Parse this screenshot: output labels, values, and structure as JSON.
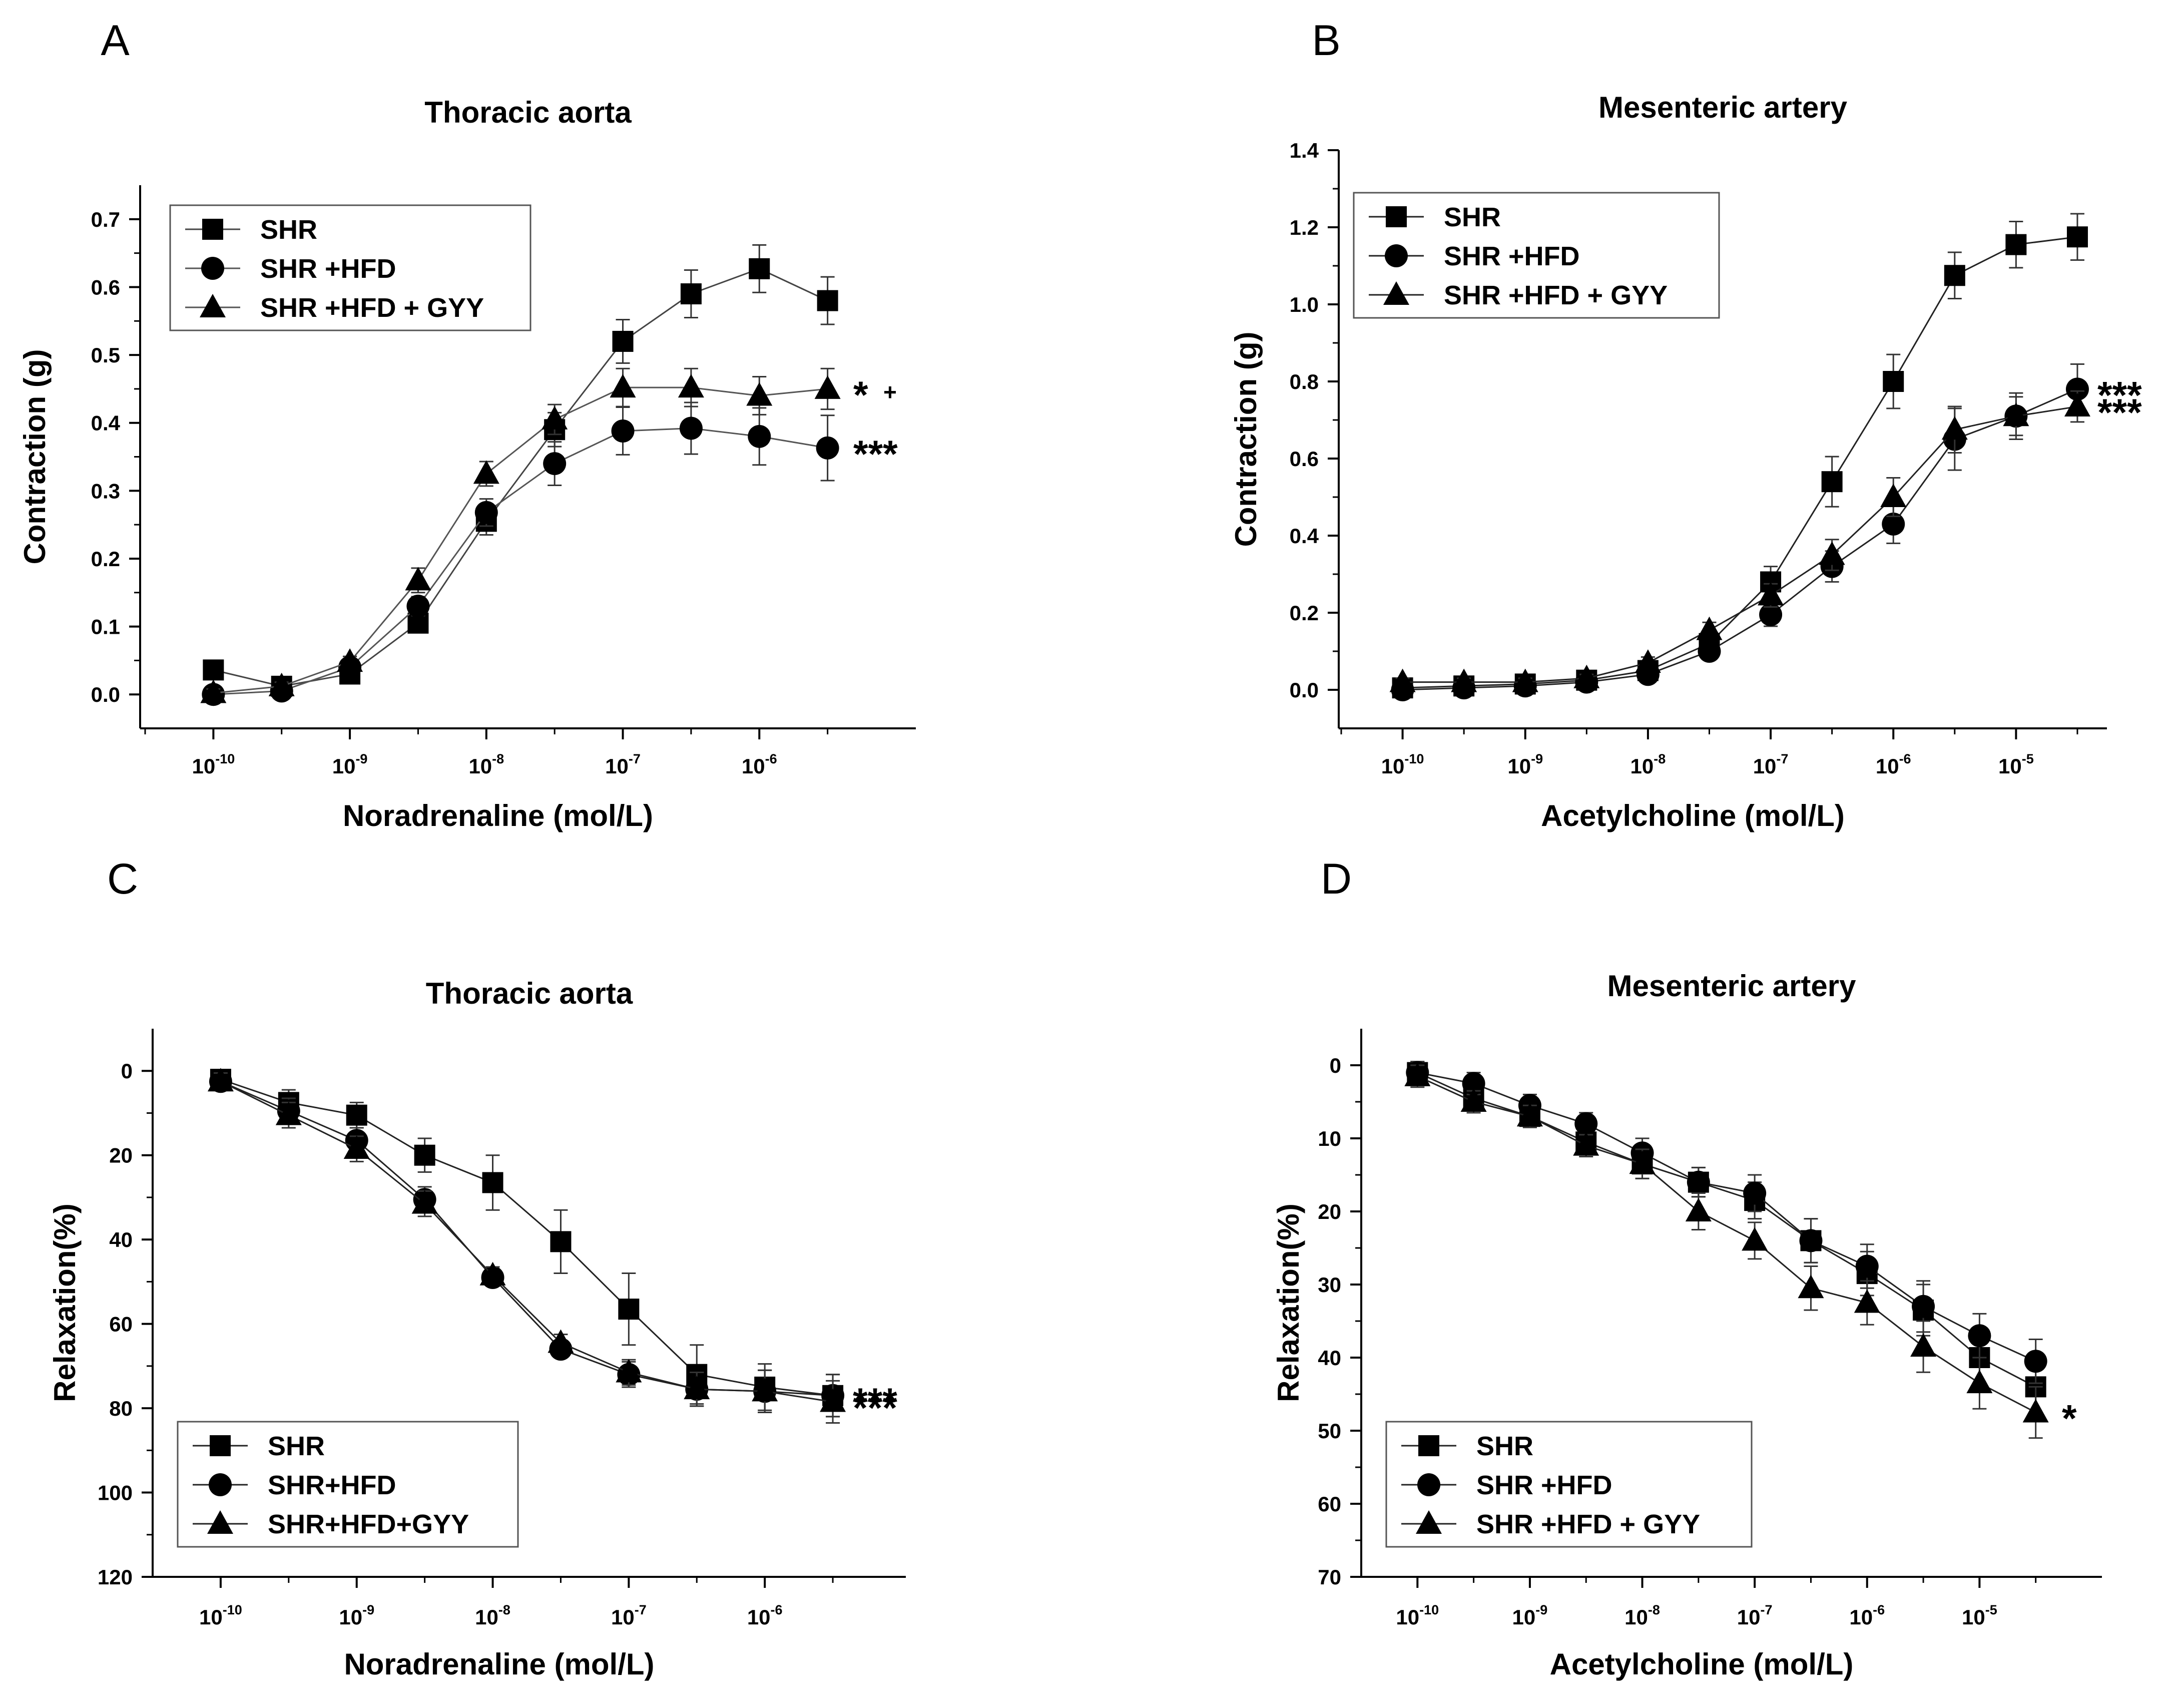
{
  "chart_data": [
    {
      "panel": "A",
      "type": "line",
      "title": "Thoracic aorta",
      "xlabel": "Noradrenaline (mol/L)",
      "ylabel": "Contraction (g)",
      "x_scale": "log10",
      "x_ticks": [
        {
          "value": -10,
          "base": "10",
          "exp": "-10"
        },
        {
          "value": -9,
          "base": "10",
          "exp": "-9"
        },
        {
          "value": -8,
          "base": "10",
          "exp": "-8"
        },
        {
          "value": -7,
          "base": "10",
          "exp": "-7"
        },
        {
          "value": -6,
          "base": "10",
          "exp": "-6"
        }
      ],
      "y_ticks": [
        "0.0",
        "0.1",
        "0.2",
        "0.3",
        "0.4",
        "0.5",
        "0.6",
        "0.7"
      ],
      "xlim": [
        -10.5,
        -5.0
      ],
      "ylim": [
        -0.05,
        0.75
      ],
      "y_inverted": false,
      "legend_position": "top-left",
      "series": [
        {
          "name": "SHR",
          "marker": "square",
          "color": "#444444",
          "x": [
            -10,
            -9.5,
            -9,
            -8.5,
            -8,
            -7.5,
            -7,
            -6.5,
            -6,
            -5.5
          ],
          "values": [
            0.036,
            0.012,
            0.03,
            0.105,
            0.255,
            0.39,
            0.52,
            0.59,
            0.627,
            0.58
          ],
          "errors": [
            0.008,
            0.006,
            0.006,
            0.012,
            0.02,
            0.025,
            0.032,
            0.035,
            0.035,
            0.035
          ]
        },
        {
          "name": "SHR +HFD",
          "marker": "circle",
          "color": "#555555",
          "x": [
            -10,
            -9.5,
            -9,
            -8.5,
            -8,
            -7.5,
            -7,
            -6.5,
            -6,
            -5.5
          ],
          "values": [
            0.0,
            0.005,
            0.04,
            0.13,
            0.268,
            0.34,
            0.388,
            0.392,
            0.38,
            0.363
          ],
          "errors": [
            0.006,
            0.006,
            0.006,
            0.014,
            0.02,
            0.032,
            0.035,
            0.038,
            0.042,
            0.048
          ]
        },
        {
          "name": "SHR +HFD + GYY",
          "marker": "triangle",
          "color": "#555555",
          "x": [
            -10,
            -9.5,
            -9,
            -8.5,
            -8,
            -7.5,
            -7,
            -6.5,
            -6,
            -5.5
          ],
          "values": [
            0.002,
            0.012,
            0.048,
            0.168,
            0.325,
            0.405,
            0.452,
            0.452,
            0.44,
            0.45
          ],
          "errors": [
            0.006,
            0.006,
            0.008,
            0.018,
            0.018,
            0.022,
            0.028,
            0.028,
            0.028,
            0.03
          ]
        }
      ],
      "annotations": [
        {
          "series": 2,
          "text": "*",
          "small": "+"
        },
        {
          "series": 1,
          "text": "***"
        }
      ]
    },
    {
      "panel": "B",
      "type": "line",
      "title": "Mesenteric artery",
      "xlabel": "Acetylcholine (mol/L)",
      "ylabel": "Contraction (g)",
      "x_scale": "log10",
      "x_ticks": [
        {
          "value": -10,
          "base": "10",
          "exp": "-10"
        },
        {
          "value": -9,
          "base": "10",
          "exp": "-9"
        },
        {
          "value": -8,
          "base": "10",
          "exp": "-8"
        },
        {
          "value": -7,
          "base": "10",
          "exp": "-7"
        },
        {
          "value": -6,
          "base": "10",
          "exp": "-6"
        },
        {
          "value": -5,
          "base": "10",
          "exp": "-5"
        }
      ],
      "y_ticks": [
        "0.0",
        "0.2",
        "0.4",
        "0.6",
        "0.8",
        "1.0",
        "1.2",
        "1.4"
      ],
      "xlim": [
        -10.5,
        -4.3
      ],
      "ylim": [
        -0.1,
        1.4
      ],
      "y_inverted": false,
      "legend_position": "top-left",
      "series": [
        {
          "name": "SHR",
          "marker": "square",
          "color": "#222222",
          "x": [
            -10,
            -9.5,
            -9,
            -8.5,
            -8,
            -7.5,
            -7,
            -6.5,
            -6,
            -5.5,
            -5,
            -4.5
          ],
          "values": [
            0.005,
            0.01,
            0.015,
            0.025,
            0.05,
            0.12,
            0.28,
            0.54,
            0.8,
            1.075,
            1.155,
            1.175
          ],
          "errors": [
            0.01,
            0.01,
            0.01,
            0.01,
            0.015,
            0.02,
            0.04,
            0.065,
            0.07,
            0.06,
            0.06,
            0.06
          ]
        },
        {
          "name": "SHR +HFD",
          "marker": "circle",
          "color": "#222222",
          "x": [
            -10,
            -9.5,
            -9,
            -8.5,
            -8,
            -7.5,
            -7,
            -6.5,
            -6,
            -5.5,
            -5,
            -4.5
          ],
          "values": [
            0.0,
            0.005,
            0.01,
            0.02,
            0.04,
            0.1,
            0.195,
            0.32,
            0.43,
            0.65,
            0.71,
            0.78
          ],
          "errors": [
            0.01,
            0.01,
            0.01,
            0.01,
            0.015,
            0.02,
            0.03,
            0.04,
            0.05,
            0.08,
            0.06,
            0.065
          ]
        },
        {
          "name": "SHR +HFD + GYY",
          "marker": "triangle",
          "color": "#222222",
          "x": [
            -10,
            -9.5,
            -9,
            -8.5,
            -8,
            -7.5,
            -7,
            -6.5,
            -6,
            -5.5,
            -5,
            -4.5
          ],
          "values": [
            0.02,
            0.02,
            0.02,
            0.03,
            0.07,
            0.155,
            0.245,
            0.35,
            0.5,
            0.675,
            0.71,
            0.735
          ],
          "errors": [
            0.01,
            0.01,
            0.01,
            0.01,
            0.015,
            0.02,
            0.03,
            0.04,
            0.05,
            0.06,
            0.05,
            0.04
          ]
        }
      ],
      "annotations": [
        {
          "series": 1,
          "text": "***"
        },
        {
          "series": 2,
          "text": "***"
        }
      ]
    },
    {
      "panel": "C",
      "type": "line",
      "title": "Thoracic aorta",
      "xlabel": "Noradrenaline (mol/L)",
      "ylabel": "Relaxation(%)",
      "x_scale": "log10",
      "x_ticks": [
        {
          "value": -10,
          "base": "10",
          "exp": "-10"
        },
        {
          "value": -9,
          "base": "10",
          "exp": "-9"
        },
        {
          "value": -8,
          "base": "10",
          "exp": "-8"
        },
        {
          "value": -7,
          "base": "10",
          "exp": "-7"
        },
        {
          "value": -6,
          "base": "10",
          "exp": "-6"
        }
      ],
      "y_ticks": [
        "0",
        "20",
        "40",
        "60",
        "80",
        "100",
        "120"
      ],
      "xlim": [
        -10.5,
        -5.0
      ],
      "ylim": [
        -10,
        120
      ],
      "y_inverted": true,
      "legend_position": "bottom-left",
      "series": [
        {
          "name": "SHR",
          "marker": "square",
          "color": "#222222",
          "x": [
            -10,
            -9.5,
            -9,
            -8.5,
            -8,
            -7.5,
            -7,
            -6.5,
            -6,
            -5.5
          ],
          "values": [
            2,
            7.5,
            10.5,
            20,
            26.5,
            40.5,
            56.5,
            72,
            75,
            77
          ],
          "errors": [
            2,
            3,
            3,
            4,
            6.5,
            7.5,
            8.5,
            7,
            5.5,
            5
          ]
        },
        {
          "name": "SHR+HFD",
          "marker": "circle",
          "color": "#222222",
          "x": [
            -10,
            -9.5,
            -9,
            -8.5,
            -8,
            -7.5,
            -7,
            -6.5,
            -6,
            -5.5
          ],
          "values": [
            2.5,
            9.5,
            16.5,
            30.5,
            49,
            66,
            72,
            75.5,
            76,
            77
          ],
          "errors": [
            2,
            3,
            3,
            3,
            2,
            2,
            3,
            4,
            5,
            5
          ]
        },
        {
          "name": "SHR+HFD+GYY",
          "marker": "triangle",
          "color": "#222222",
          "x": [
            -10,
            -9.5,
            -9,
            -8.5,
            -8,
            -7.5,
            -7,
            -6.5,
            -6,
            -5.5
          ],
          "values": [
            2.5,
            10.5,
            18.5,
            31.5,
            48.5,
            64.5,
            71.5,
            75.5,
            76,
            78.5
          ],
          "errors": [
            2,
            3,
            3,
            3,
            2,
            2,
            3,
            4,
            5,
            5
          ]
        }
      ],
      "annotations": [
        {
          "series": 1,
          "text": "***"
        },
        {
          "series": 2,
          "text": "***"
        }
      ]
    },
    {
      "panel": "D",
      "type": "line",
      "title": "Mesenteric artery",
      "xlabel": "Acetylcholine (mol/L)",
      "ylabel": "Relaxation(%)",
      "x_scale": "log10",
      "x_ticks": [
        {
          "value": -10,
          "base": "10",
          "exp": "-10"
        },
        {
          "value": -9,
          "base": "10",
          "exp": "-9"
        },
        {
          "value": -8,
          "base": "10",
          "exp": "-8"
        },
        {
          "value": -7,
          "base": "10",
          "exp": "-7"
        },
        {
          "value": -6,
          "base": "10",
          "exp": "-6"
        },
        {
          "value": -5,
          "base": "10",
          "exp": "-5"
        }
      ],
      "y_ticks": [
        "0",
        "10",
        "20",
        "30",
        "40",
        "50",
        "60",
        "70"
      ],
      "xlim": [
        -10.5,
        -4.0
      ],
      "ylim": [
        -5,
        70
      ],
      "y_inverted": true,
      "legend_position": "bottom-left",
      "series": [
        {
          "name": "SHR",
          "marker": "square",
          "color": "#222222",
          "x": [
            -10,
            -9.5,
            -9,
            -8.5,
            -8,
            -7.5,
            -7,
            -6.5,
            -6,
            -5.5,
            -5,
            -4.5
          ],
          "values": [
            1,
            4.5,
            7,
            10.5,
            13.5,
            16,
            18.5,
            24,
            28.5,
            33.5,
            40,
            44
          ],
          "errors": [
            1.5,
            1.5,
            1.5,
            1.5,
            2,
            2,
            2.5,
            3,
            3,
            3.5,
            3.5,
            3.5
          ]
        },
        {
          "name": "SHR +HFD",
          "marker": "circle",
          "color": "#222222",
          "x": [
            -10,
            -9.5,
            -9,
            -8.5,
            -8,
            -7.5,
            -7,
            -6.5,
            -6,
            -5.5,
            -5,
            -4.5
          ],
          "values": [
            1,
            2.5,
            5.5,
            8,
            12,
            16,
            17.5,
            24,
            27.5,
            33,
            37,
            40.5
          ],
          "errors": [
            1.5,
            1.5,
            1.5,
            1.5,
            2,
            2,
            2.5,
            3,
            3,
            3.5,
            3,
            3
          ]
        },
        {
          "name": "SHR +HFD + GYY",
          "marker": "triangle",
          "color": "#222222",
          "x": [
            -10,
            -9.5,
            -9,
            -8.5,
            -8,
            -7.5,
            -7,
            -6.5,
            -6,
            -5.5,
            -5,
            -4.5
          ],
          "values": [
            1.5,
            5,
            7,
            11,
            13.5,
            20,
            24,
            30.5,
            32.5,
            38.5,
            43.5,
            47.5
          ],
          "errors": [
            1.5,
            1.5,
            1.5,
            1.5,
            2,
            2.5,
            2.5,
            3,
            3,
            3.5,
            3.5,
            3.5
          ]
        }
      ],
      "annotations": [
        {
          "series": 2,
          "text": "*"
        }
      ]
    }
  ]
}
